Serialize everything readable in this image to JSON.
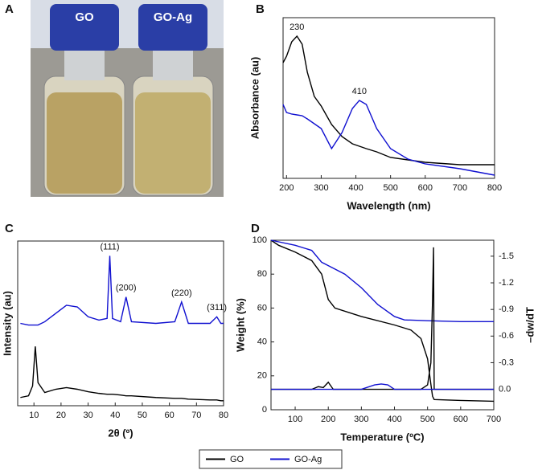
{
  "photo": {
    "label": "A",
    "captions": [
      "GO",
      "GO-Ag"
    ]
  },
  "chart_data": [
    {
      "type": "line",
      "panel_label": "B",
      "x_label": "Wavelength (nm)",
      "y_label": "Absorbance (au)",
      "xlim": [
        190,
        800
      ],
      "xticks": [
        200,
        300,
        400,
        500,
        600,
        700,
        800
      ],
      "ylim": [
        0,
        1
      ],
      "x": [
        190,
        200,
        215,
        230,
        245,
        260,
        280,
        300,
        330,
        360,
        390,
        410,
        430,
        460,
        500,
        550,
        600,
        700,
        800
      ],
      "series": [
        {
          "name": "GO",
          "color": "#000000",
          "values": [
            0.72,
            0.76,
            0.85,
            0.885,
            0.835,
            0.66,
            0.51,
            0.45,
            0.335,
            0.26,
            0.215,
            0.2,
            0.185,
            0.165,
            0.13,
            0.115,
            0.1,
            0.085,
            0.085
          ]
        },
        {
          "name": "GO-Ag",
          "color": "#1010d0",
          "values": [
            0.46,
            0.41,
            0.4,
            0.395,
            0.39,
            0.37,
            0.34,
            0.31,
            0.185,
            0.285,
            0.435,
            0.485,
            0.46,
            0.31,
            0.185,
            0.12,
            0.09,
            0.06,
            0.02
          ]
        }
      ],
      "annotations": [
        {
          "text": "230",
          "x": 230,
          "y": 0.885
        },
        {
          "text": "410",
          "x": 410,
          "y": 0.485
        }
      ]
    },
    {
      "type": "line",
      "panel_label": "C",
      "x_label": "2θ (º)",
      "y_label": "Intensity (au)",
      "xlim": [
        4,
        80
      ],
      "xticks": [
        10,
        20,
        30,
        40,
        50,
        60,
        70,
        80
      ],
      "ylim": [
        0,
        1
      ],
      "x": [
        5,
        8,
        9.5,
        10.5,
        11.5,
        14,
        18,
        22,
        26,
        30,
        34,
        37,
        38,
        39,
        42,
        44,
        46,
        55,
        62,
        64.5,
        67,
        75,
        77.5,
        79,
        80
      ],
      "series": [
        {
          "name": "GO-Ag",
          "color": "#1010d0",
          "values": [
            0.5,
            0.49,
            0.49,
            0.49,
            0.49,
            0.51,
            0.56,
            0.61,
            0.6,
            0.54,
            0.52,
            0.53,
            0.91,
            0.53,
            0.51,
            0.66,
            0.51,
            0.5,
            0.51,
            0.63,
            0.5,
            0.5,
            0.54,
            0.5,
            0.5
          ]
        },
        {
          "name": "GO",
          "color": "#000000",
          "values": [
            0.05,
            0.06,
            0.12,
            0.36,
            0.14,
            0.08,
            0.1,
            0.11,
            0.1,
            0.085,
            0.075,
            0.07,
            0.07,
            0.07,
            0.065,
            0.06,
            0.06,
            0.05,
            0.045,
            0.045,
            0.04,
            0.035,
            0.035,
            0.03,
            0.03
          ]
        }
      ],
      "annotations": [
        {
          "text": "(111)",
          "x": 38,
          "y": 0.91
        },
        {
          "text": "(200)",
          "x": 44,
          "y": 0.66
        },
        {
          "text": "(220)",
          "x": 64.5,
          "y": 0.63
        },
        {
          "text": "(311)",
          "x": 77.5,
          "y": 0.54
        }
      ]
    },
    {
      "type": "line",
      "panel_label": "D",
      "x_label": "Temperature (ºC)",
      "y_label": "Weight (%)",
      "y2_label": "–dw/dT",
      "xlim": [
        27,
        700
      ],
      "xticks": [
        100,
        200,
        300,
        400,
        500,
        600,
        700
      ],
      "ylim": [
        0,
        100
      ],
      "yticks": [
        0,
        20,
        40,
        60,
        80,
        100
      ],
      "y2lim": [
        0.23,
        -1.68
      ],
      "y2ticks": [
        {
          "value": 0,
          "label": "0.0"
        },
        -0.3,
        -0.6,
        -0.9,
        -1.2,
        -1.5
      ],
      "series": [
        {
          "name": "GO",
          "color": "#000000",
          "x": [
            27,
            50,
            100,
            150,
            180,
            200,
            220,
            300,
            400,
            450,
            480,
            500,
            510,
            515,
            520,
            600,
            700
          ],
          "values": [
            100,
            97,
            93,
            88,
            80,
            65,
            60,
            55,
            50,
            47,
            42,
            30,
            15,
            8,
            6,
            5.5,
            5
          ]
        },
        {
          "name": "GO-Ag",
          "color": "#1010d0",
          "x": [
            27,
            100,
            150,
            180,
            200,
            250,
            300,
            350,
            400,
            430,
            500,
            600,
            700
          ],
          "values": [
            100,
            97,
            94,
            87,
            85,
            80,
            72,
            62,
            55,
            53,
            52.5,
            52,
            52
          ]
        },
        {
          "name": "GO",
          "color": "#000000",
          "axis": "y2",
          "x": [
            27,
            150,
            170,
            185,
            200,
            215,
            300,
            480,
            500,
            510,
            515,
            518,
            520,
            600,
            700
          ],
          "values": [
            0,
            0,
            -0.03,
            -0.02,
            -0.08,
            0,
            0,
            0,
            -0.05,
            -0.3,
            -1.0,
            -1.6,
            0,
            0,
            0
          ]
        },
        {
          "name": "GO-Ag",
          "color": "#1010d0",
          "axis": "y2",
          "x": [
            27,
            300,
            340,
            360,
            380,
            400,
            700
          ],
          "values": [
            0,
            0,
            -0.05,
            -0.06,
            -0.05,
            0,
            0
          ]
        }
      ]
    }
  ]
}
